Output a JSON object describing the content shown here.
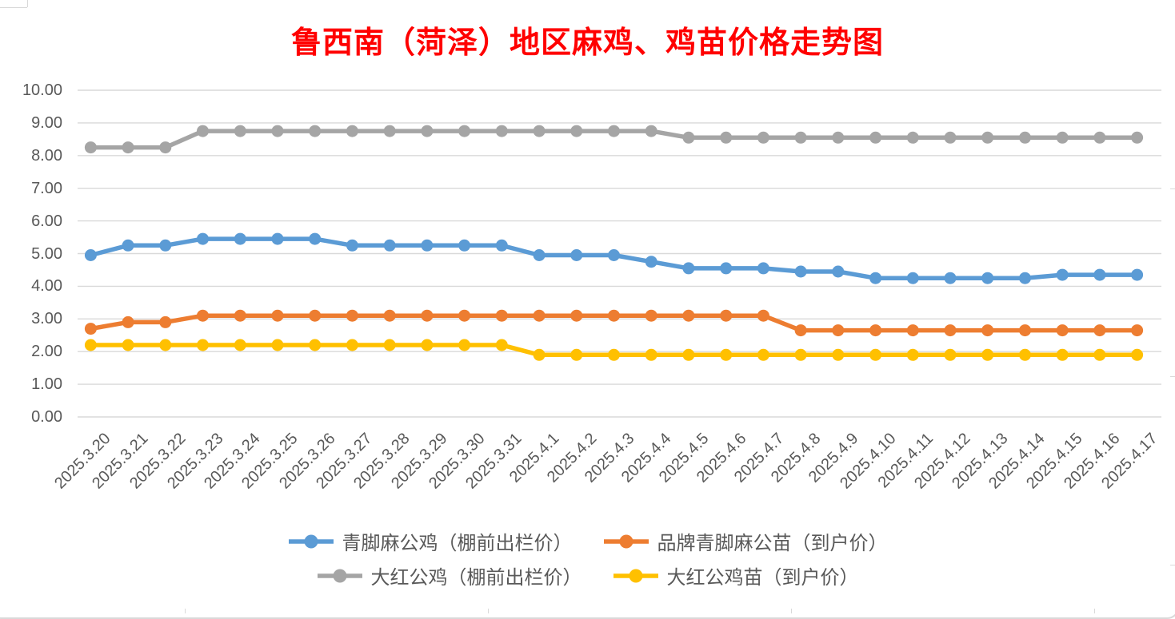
{
  "title": "鲁西南（菏泽）地区麻鸡、鸡苗价格走势图",
  "colors": {
    "title": "#FF0000",
    "axis_text": "#595959",
    "gridline": "#D9D9D9",
    "frame_border": "#D9D9D9",
    "series_blue": "#5B9BD5",
    "series_orange": "#ED7D31",
    "series_gray": "#A5A5A5",
    "series_yellow": "#FFC000"
  },
  "chart_data": {
    "type": "line",
    "title": "鲁西南（菏泽）地区麻鸡、鸡苗价格走势图",
    "xlabel": "",
    "ylabel": "",
    "ylim": [
      0,
      10
    ],
    "y_tick_step": 1,
    "y_ticks": [
      "0.00",
      "1.00",
      "2.00",
      "3.00",
      "4.00",
      "5.00",
      "6.00",
      "7.00",
      "8.00",
      "9.00",
      "10.00"
    ],
    "grid": "horizontal",
    "legend_position": "bottom",
    "x_label_rotation": -45,
    "marker": "circle",
    "categories": [
      "2025.3.20",
      "2025.3.21",
      "2025.3.22",
      "2025.3.23",
      "2025.3.24",
      "2025.3.25",
      "2025.3.26",
      "2025.3.27",
      "2025.3.28",
      "2025.3.29",
      "2025.3.30",
      "2025.3.31",
      "2025.4.1",
      "2025.4.2",
      "2025.4.3",
      "2025.4.4",
      "2025.4.5",
      "2025.4.6",
      "2025.4.7",
      "2025.4.8",
      "2025.4.9",
      "2025.4.10",
      "2025.4.11",
      "2025.4.12",
      "2025.4.13",
      "2025.4.14",
      "2025.4.15",
      "2025.4.16",
      "2025.4.17"
    ],
    "series": [
      {
        "name": "青脚麻公鸡（棚前出栏价）",
        "color": "#5B9BD5",
        "values": [
          4.95,
          5.25,
          5.25,
          5.45,
          5.45,
          5.45,
          5.45,
          5.25,
          5.25,
          5.25,
          5.25,
          5.25,
          4.95,
          4.95,
          4.95,
          4.75,
          4.55,
          4.55,
          4.55,
          4.45,
          4.45,
          4.25,
          4.25,
          4.25,
          4.25,
          4.25,
          4.35,
          4.35,
          4.35
        ]
      },
      {
        "name": "品牌青脚麻公苗（到户价）",
        "color": "#ED7D31",
        "values": [
          2.7,
          2.9,
          2.9,
          3.1,
          3.1,
          3.1,
          3.1,
          3.1,
          3.1,
          3.1,
          3.1,
          3.1,
          3.1,
          3.1,
          3.1,
          3.1,
          3.1,
          3.1,
          3.1,
          2.65,
          2.65,
          2.65,
          2.65,
          2.65,
          2.65,
          2.65,
          2.65,
          2.65,
          2.65
        ]
      },
      {
        "name": "大红公鸡（棚前出栏价）",
        "color": "#A5A5A5",
        "values": [
          8.25,
          8.25,
          8.25,
          8.75,
          8.75,
          8.75,
          8.75,
          8.75,
          8.75,
          8.75,
          8.75,
          8.75,
          8.75,
          8.75,
          8.75,
          8.75,
          8.55,
          8.55,
          8.55,
          8.55,
          8.55,
          8.55,
          8.55,
          8.55,
          8.55,
          8.55,
          8.55,
          8.55,
          8.55
        ]
      },
      {
        "name": "大红公鸡苗（到户价）",
        "color": "#FFC000",
        "values": [
          2.2,
          2.2,
          2.2,
          2.2,
          2.2,
          2.2,
          2.2,
          2.2,
          2.2,
          2.2,
          2.2,
          2.2,
          1.9,
          1.9,
          1.9,
          1.9,
          1.9,
          1.9,
          1.9,
          1.9,
          1.9,
          1.9,
          1.9,
          1.9,
          1.9,
          1.9,
          1.9,
          1.9,
          1.9
        ]
      }
    ],
    "legend_rows": [
      [
        0,
        1
      ],
      [
        2,
        3
      ]
    ]
  }
}
